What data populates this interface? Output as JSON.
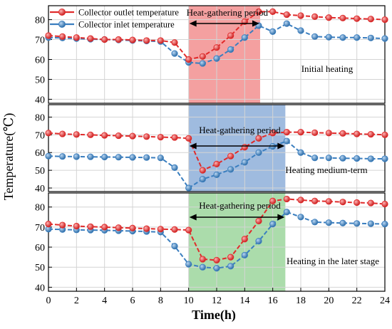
{
  "chart_data": {
    "type": "line",
    "xlabel": "Time(h)",
    "ylabel": "Temperature(℃)",
    "xlim": [
      0,
      24
    ],
    "xticks": [
      0,
      2,
      4,
      6,
      8,
      10,
      12,
      14,
      16,
      18,
      20,
      22,
      24
    ],
    "x": [
      0,
      1,
      2,
      3,
      4,
      5,
      6,
      7,
      8,
      9,
      10,
      11,
      12,
      13,
      14,
      15,
      16,
      17,
      18,
      19,
      20,
      21,
      22,
      23,
      24
    ],
    "legend": {
      "placement": "top-left",
      "entries": [
        "Collector outlet temperature",
        "Collector inlet temperature"
      ]
    },
    "colors": {
      "outlet": "#e02b2b",
      "inlet": "#3a7ebf"
    },
    "panels": [
      {
        "annotation": "Initial heating",
        "ylim": [
          38,
          87
        ],
        "yticks": [
          40,
          50,
          60,
          70,
          80
        ],
        "period_label": "Heat-gathering period",
        "period": [
          10,
          15.1
        ],
        "period_color": "#f08080",
        "series": [
          {
            "name": "Collector outlet temperature",
            "values": [
              72,
              71.5,
              71,
              70.5,
              70,
              70,
              69.8,
              69.5,
              69.5,
              68.5,
              60,
              61.5,
              66,
              72,
              79,
              84,
              84,
              82.5,
              82,
              81.5,
              81,
              80.8,
              80.5,
              80.3,
              80
            ]
          },
          {
            "name": "Collector inlet temperature",
            "values": [
              71,
              70.8,
              70.5,
              70.2,
              70,
              69.8,
              69.5,
              69.3,
              69,
              63,
              58.5,
              58,
              60.5,
              65,
              71,
              77,
              74,
              78,
              74.5,
              71.5,
              71.2,
              71,
              71,
              70.8,
              70.5
            ]
          }
        ]
      },
      {
        "annotation": "Heating medium-term",
        "ylim": [
          38,
          87
        ],
        "yticks": [
          40,
          50,
          60,
          70,
          80
        ],
        "period_label": "Heat-gathering period",
        "period": [
          10,
          16.9
        ],
        "period_color": "#7fa4d4",
        "series": [
          {
            "name": "Collector outlet temperature",
            "values": [
              71,
              70.5,
              70.2,
              70,
              69.7,
              69.5,
              69.3,
              69,
              68.7,
              68.5,
              68,
              50,
              53.5,
              58,
              63,
              68,
              71,
              71.5,
              71.5,
              71.2,
              71,
              70.8,
              70.5,
              70.3,
              70
            ]
          },
          {
            "name": "Collector inlet temperature",
            "values": [
              58,
              57.8,
              57.7,
              57.6,
              57.5,
              57.4,
              57.3,
              57.2,
              57,
              51.5,
              40,
              45,
              47.5,
              50.5,
              54.5,
              60,
              63.5,
              66.5,
              60,
              57,
              57,
              56.8,
              56.7,
              56.5,
              56.5
            ]
          }
        ]
      },
      {
        "annotation": "Heating in the later stage",
        "ylim": [
          38,
          87
        ],
        "yticks": [
          40,
          50,
          60,
          70,
          80
        ],
        "period_label": "Heat-gathering period",
        "period": [
          10,
          16.9
        ],
        "period_color": "#8fd08f",
        "series": [
          {
            "name": "Collector outlet temperature",
            "values": [
              71.5,
              71,
              70.5,
              70.2,
              70,
              69.7,
              69.5,
              69.2,
              69,
              68.8,
              68.5,
              54,
              53.5,
              55,
              64,
              73,
              83,
              84,
              83.5,
              83,
              82.8,
              82.5,
              82.2,
              82,
              81.5
            ]
          },
          {
            "name": "Collector inlet temperature",
            "values": [
              69,
              68.8,
              68.6,
              68.5,
              68.4,
              68.2,
              68,
              67.8,
              67.5,
              60.5,
              51.5,
              50,
              49.5,
              50.5,
              56,
              63,
              71.5,
              77.5,
              75,
              72.5,
              72.2,
              72,
              71.8,
              71.7,
              71.5
            ]
          }
        ]
      }
    ]
  }
}
